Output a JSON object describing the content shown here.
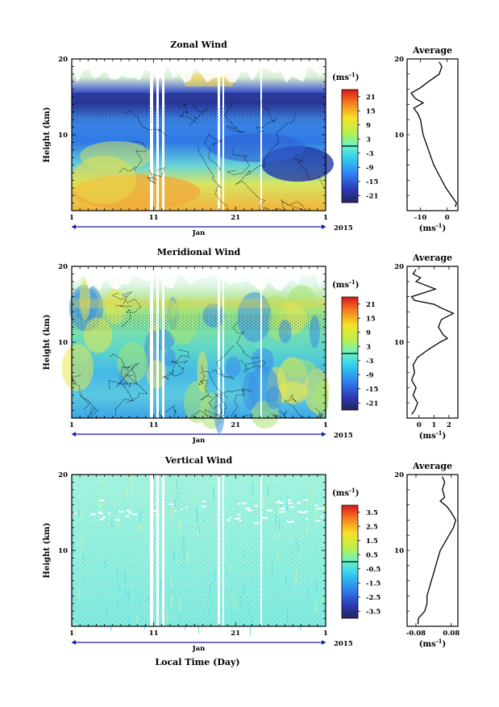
{
  "figure": {
    "xlabel": "Local Time (Day)",
    "month_label": "Jan",
    "year_label": "2015",
    "ylabel": "Height (km)",
    "unit_label": "(ms",
    "unit_exp": "-1",
    "avg_title": "Average"
  },
  "chart_data": [
    {
      "type": "heatmap",
      "title": "Zonal Wind",
      "x_ticks": [
        "1",
        "11",
        "21",
        "1"
      ],
      "y_ticks": [
        "10",
        "20"
      ],
      "ylim": [
        0,
        20
      ],
      "colorbar_ticks": [
        "21",
        "15",
        "9",
        "3",
        "-3",
        "-9",
        "-15",
        "-21"
      ],
      "colorbar_range": [
        -24,
        24
      ],
      "average_profile": {
        "title": "Average",
        "x_ticks": [
          "-10",
          "0"
        ],
        "xlim": [
          -15,
          4
        ],
        "y_ticks": [
          "10",
          "20"
        ],
        "height": [
          0.5,
          1,
          2,
          3,
          4,
          5,
          6,
          7,
          8,
          9,
          10,
          11,
          12,
          12.8,
          13.5,
          14.2,
          14.8,
          15.5,
          16.2,
          17,
          18,
          19,
          19.6
        ],
        "values": [
          3,
          3.5,
          1.5,
          -0.5,
          -2,
          -3.5,
          -5,
          -6,
          -7,
          -8,
          -9,
          -9.5,
          -10,
          -11,
          -12.5,
          -9,
          -12,
          -13.5,
          -10,
          -7,
          -3,
          -2,
          -3
        ]
      }
    },
    {
      "type": "heatmap",
      "title": "Meridional Wind",
      "x_ticks": [
        "1",
        "11",
        "21",
        "1"
      ],
      "y_ticks": [
        "10",
        "20"
      ],
      "ylim": [
        0,
        20
      ],
      "colorbar_ticks": [
        "21",
        "15",
        "9",
        "3",
        "-3",
        "-9",
        "-15",
        "-21"
      ],
      "colorbar_range": [
        -24,
        24
      ],
      "average_profile": {
        "title": "Average",
        "x_ticks": [
          "0",
          "1",
          "2"
        ],
        "xlim": [
          -0.8,
          2.6
        ],
        "y_ticks": [
          "10",
          "20"
        ],
        "height": [
          0.5,
          1,
          2,
          3,
          4,
          5,
          6,
          7,
          8,
          9,
          10,
          10.5,
          11,
          12,
          13,
          13.8,
          14.5,
          15,
          15.5,
          16,
          17,
          18,
          18.5,
          19,
          19.6
        ],
        "values": [
          -0.5,
          -0.3,
          -0.1,
          -0.4,
          -0.2,
          -0.5,
          -0.3,
          -0.4,
          -0.1,
          0.6,
          1.4,
          1.9,
          1.6,
          1.3,
          1.5,
          2.3,
          1.5,
          1.0,
          -0.3,
          -0.5,
          1.1,
          -0.2,
          0.1,
          -0.4,
          -0.2
        ]
      }
    },
    {
      "type": "heatmap",
      "title": "Vertical Wind",
      "x_ticks": [
        "1",
        "11",
        "21",
        "1"
      ],
      "y_ticks": [
        "10",
        "20"
      ],
      "ylim": [
        0,
        20
      ],
      "colorbar_ticks": [
        "3.5",
        "2.5",
        "1.5",
        "0.5",
        "-0.5",
        "-1.5",
        "-2.5",
        "-3.5"
      ],
      "colorbar_range": [
        -4,
        4
      ],
      "average_profile": {
        "title": "Average",
        "x_ticks": [
          "-0.08",
          "0.08"
        ],
        "xlim": [
          -0.12,
          0.11
        ],
        "y_ticks": [
          "10",
          "20"
        ],
        "height": [
          0.3,
          1,
          2,
          3,
          4,
          5,
          6,
          7,
          8,
          9,
          10,
          11,
          12,
          13,
          14,
          15,
          15.8,
          16.5,
          17,
          18,
          19,
          19.7
        ],
        "values": [
          -0.07,
          -0.07,
          -0.04,
          -0.03,
          -0.03,
          -0.02,
          -0.01,
          0.0,
          0.01,
          0.02,
          0.03,
          0.05,
          0.07,
          0.09,
          0.1,
          0.08,
          0.06,
          0.03,
          0.05,
          0.04,
          0.05,
          0.04
        ]
      }
    }
  ]
}
